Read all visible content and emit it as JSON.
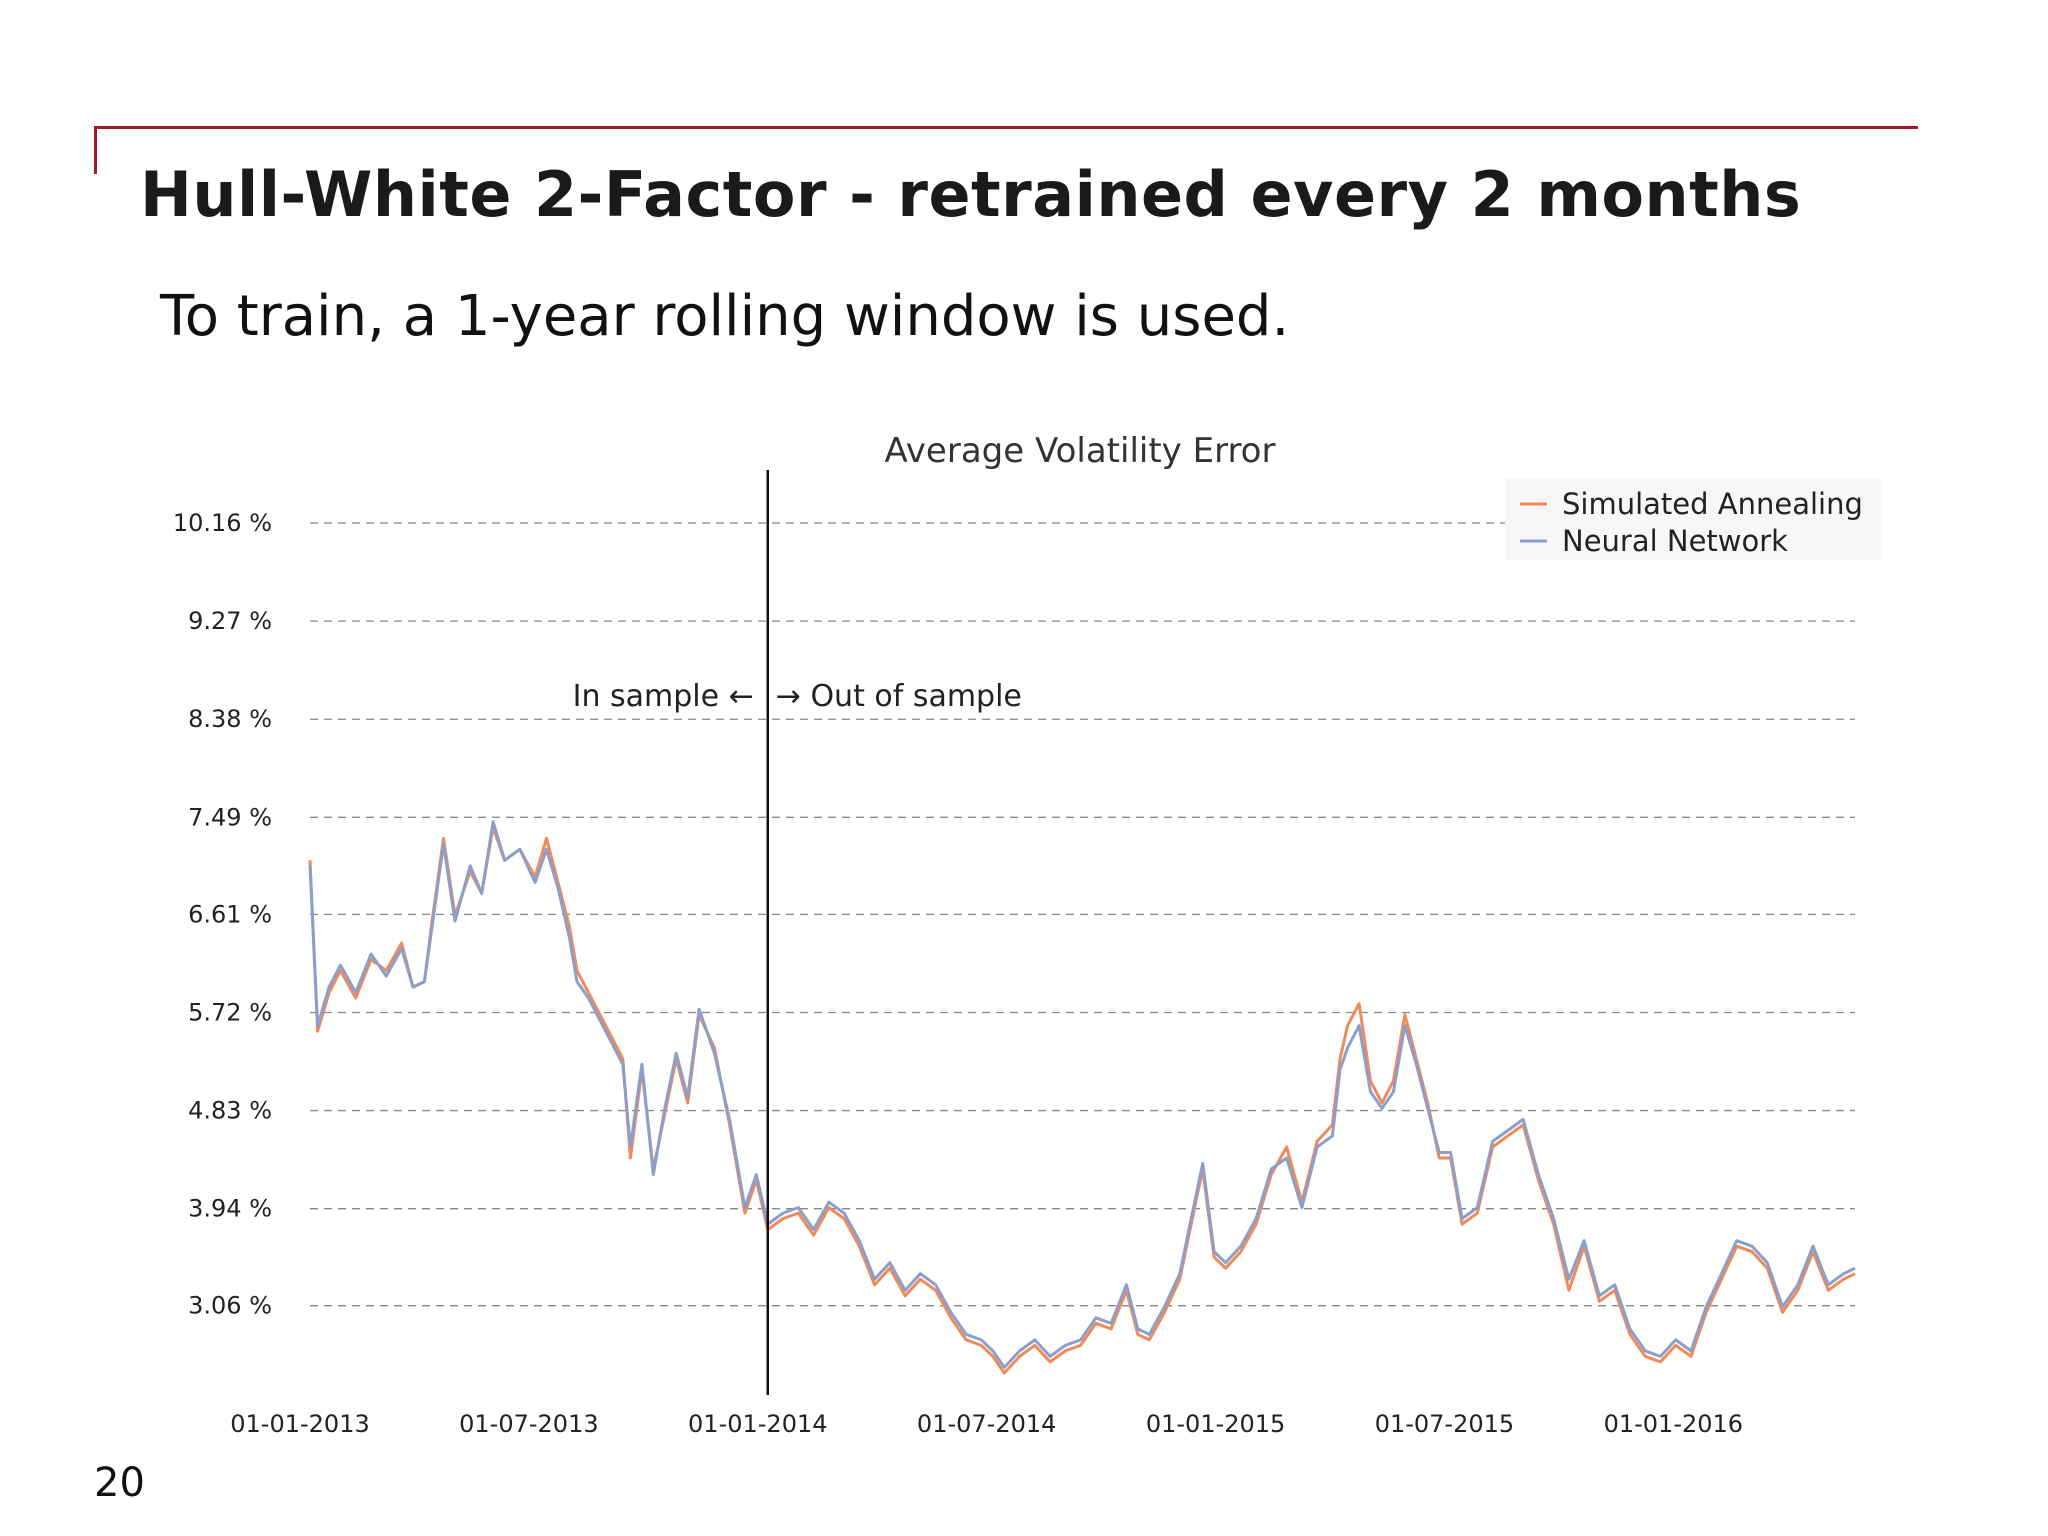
{
  "slide": {
    "title": "Hull-White 2-Factor - retrained every 2 months",
    "subtitle": "To train, a 1-year rolling window is used.",
    "page_number": "20",
    "accent_color": "#a0182a"
  },
  "chart_data": {
    "type": "line",
    "title": "Average Volatility Error",
    "xlabel": "",
    "ylabel": "",
    "x_tick_labels": [
      "01-01-2013",
      "01-07-2013",
      "01-01-2014",
      "01-07-2014",
      "01-01-2015",
      "01-07-2015",
      "01-01-2016"
    ],
    "y_tick_labels": [
      "10.16 %",
      "9.27 %",
      "8.38 %",
      "7.49 %",
      "6.61 %",
      "5.72 %",
      "4.83 %",
      "3.94 %",
      "3.06 %"
    ],
    "y_ticks": [
      10.16,
      9.27,
      8.38,
      7.49,
      6.61,
      5.72,
      4.83,
      3.94,
      3.06
    ],
    "ylim": [
      2.25,
      10.55
    ],
    "x_range_months": [
      0,
      40.5
    ],
    "grid": "horizontal dashed",
    "legend_position": "top-right",
    "split": {
      "x_month": 12,
      "label_left": "In sample ←",
      "label_right": "→ Out of sample"
    },
    "x_unit": "months since 01-01-2013",
    "series": [
      {
        "name": "Simulated Annealing",
        "color": "#ef8a5b",
        "points": [
          [
            0,
            7.1
          ],
          [
            0.2,
            5.55
          ],
          [
            0.5,
            5.9
          ],
          [
            0.8,
            6.1
          ],
          [
            1.2,
            5.85
          ],
          [
            1.6,
            6.2
          ],
          [
            2,
            6.1
          ],
          [
            2.4,
            6.35
          ],
          [
            2.7,
            5.95
          ],
          [
            3,
            6.0
          ],
          [
            3.2,
            6.55
          ],
          [
            3.5,
            7.3
          ],
          [
            3.8,
            6.6
          ],
          [
            4.2,
            7.0
          ],
          [
            4.5,
            6.8
          ],
          [
            4.8,
            7.4
          ],
          [
            5.1,
            7.1
          ],
          [
            5.5,
            7.2
          ],
          [
            5.9,
            6.95
          ],
          [
            6.2,
            7.3
          ],
          [
            6.5,
            6.9
          ],
          [
            6.8,
            6.5
          ],
          [
            7.0,
            6.1
          ],
          [
            7.3,
            5.9
          ],
          [
            7.6,
            5.7
          ],
          [
            7.9,
            5.5
          ],
          [
            8.2,
            5.3
          ],
          [
            8.4,
            4.4
          ],
          [
            8.7,
            5.2
          ],
          [
            9.0,
            4.3
          ],
          [
            9.3,
            4.8
          ],
          [
            9.6,
            5.3
          ],
          [
            9.9,
            4.9
          ],
          [
            10.2,
            5.7
          ],
          [
            10.6,
            5.4
          ],
          [
            11.0,
            4.7
          ],
          [
            11.4,
            3.9
          ],
          [
            11.7,
            4.2
          ],
          [
            12.0,
            3.75
          ],
          [
            12.4,
            3.85
          ],
          [
            12.8,
            3.9
          ],
          [
            13.2,
            3.7
          ],
          [
            13.6,
            3.95
          ],
          [
            14.0,
            3.85
          ],
          [
            14.4,
            3.6
          ],
          [
            14.8,
            3.25
          ],
          [
            15.2,
            3.4
          ],
          [
            15.6,
            3.15
          ],
          [
            16.0,
            3.3
          ],
          [
            16.4,
            3.2
          ],
          [
            16.8,
            2.95
          ],
          [
            17.2,
            2.75
          ],
          [
            17.6,
            2.7
          ],
          [
            17.9,
            2.6
          ],
          [
            18.2,
            2.45
          ],
          [
            18.6,
            2.6
          ],
          [
            19.0,
            2.7
          ],
          [
            19.4,
            2.55
          ],
          [
            19.8,
            2.65
          ],
          [
            20.2,
            2.7
          ],
          [
            20.6,
            2.9
          ],
          [
            21.0,
            2.85
          ],
          [
            21.4,
            3.2
          ],
          [
            21.7,
            2.8
          ],
          [
            22.0,
            2.75
          ],
          [
            22.4,
            3.0
          ],
          [
            22.8,
            3.3
          ],
          [
            23.1,
            3.8
          ],
          [
            23.4,
            4.3
          ],
          [
            23.7,
            3.5
          ],
          [
            24.0,
            3.4
          ],
          [
            24.4,
            3.55
          ],
          [
            24.8,
            3.8
          ],
          [
            25.2,
            4.25
          ],
          [
            25.6,
            4.5
          ],
          [
            26.0,
            4.0
          ],
          [
            26.4,
            4.55
          ],
          [
            26.8,
            4.7
          ],
          [
            27.0,
            5.3
          ],
          [
            27.2,
            5.6
          ],
          [
            27.5,
            5.8
          ],
          [
            27.8,
            5.1
          ],
          [
            28.1,
            4.9
          ],
          [
            28.4,
            5.1
          ],
          [
            28.7,
            5.7
          ],
          [
            29.0,
            5.3
          ],
          [
            29.3,
            4.9
          ],
          [
            29.6,
            4.4
          ],
          [
            29.9,
            4.4
          ],
          [
            30.2,
            3.8
          ],
          [
            30.6,
            3.9
          ],
          [
            31.0,
            4.5
          ],
          [
            31.4,
            4.6
          ],
          [
            31.8,
            4.7
          ],
          [
            32.2,
            4.2
          ],
          [
            32.6,
            3.8
          ],
          [
            33.0,
            3.2
          ],
          [
            33.4,
            3.6
          ],
          [
            33.8,
            3.1
          ],
          [
            34.2,
            3.2
          ],
          [
            34.6,
            2.8
          ],
          [
            35.0,
            2.6
          ],
          [
            35.4,
            2.55
          ],
          [
            35.8,
            2.7
          ],
          [
            36.2,
            2.6
          ],
          [
            36.6,
            3.0
          ],
          [
            37.0,
            3.3
          ],
          [
            37.4,
            3.6
          ],
          [
            37.8,
            3.55
          ],
          [
            38.2,
            3.4
          ],
          [
            38.6,
            3.0
          ],
          [
            39.0,
            3.2
          ],
          [
            39.4,
            3.55
          ],
          [
            39.8,
            3.2
          ],
          [
            40.2,
            3.3
          ],
          [
            40.5,
            3.35
          ]
        ]
      },
      {
        "name": "Neural Network",
        "color": "#8c9fcb",
        "points": [
          [
            0,
            7.05
          ],
          [
            0.2,
            5.6
          ],
          [
            0.5,
            5.95
          ],
          [
            0.8,
            6.15
          ],
          [
            1.2,
            5.9
          ],
          [
            1.6,
            6.25
          ],
          [
            2,
            6.05
          ],
          [
            2.4,
            6.3
          ],
          [
            2.7,
            5.95
          ],
          [
            3,
            6.0
          ],
          [
            3.2,
            6.5
          ],
          [
            3.5,
            7.25
          ],
          [
            3.8,
            6.55
          ],
          [
            4.2,
            7.05
          ],
          [
            4.5,
            6.8
          ],
          [
            4.8,
            7.45
          ],
          [
            5.1,
            7.1
          ],
          [
            5.5,
            7.2
          ],
          [
            5.9,
            6.9
          ],
          [
            6.2,
            7.2
          ],
          [
            6.5,
            6.85
          ],
          [
            6.8,
            6.4
          ],
          [
            7.0,
            6.0
          ],
          [
            7.3,
            5.85
          ],
          [
            7.6,
            5.65
          ],
          [
            7.9,
            5.45
          ],
          [
            8.2,
            5.25
          ],
          [
            8.4,
            4.5
          ],
          [
            8.7,
            5.25
          ],
          [
            9.0,
            4.25
          ],
          [
            9.3,
            4.85
          ],
          [
            9.6,
            5.35
          ],
          [
            9.9,
            4.95
          ],
          [
            10.2,
            5.75
          ],
          [
            10.6,
            5.35
          ],
          [
            11.0,
            4.75
          ],
          [
            11.4,
            3.95
          ],
          [
            11.7,
            4.25
          ],
          [
            12.0,
            3.8
          ],
          [
            12.4,
            3.9
          ],
          [
            12.8,
            3.95
          ],
          [
            13.2,
            3.75
          ],
          [
            13.6,
            4.0
          ],
          [
            14.0,
            3.9
          ],
          [
            14.4,
            3.65
          ],
          [
            14.8,
            3.3
          ],
          [
            15.2,
            3.45
          ],
          [
            15.6,
            3.2
          ],
          [
            16.0,
            3.35
          ],
          [
            16.4,
            3.25
          ],
          [
            16.8,
            3.0
          ],
          [
            17.2,
            2.8
          ],
          [
            17.6,
            2.75
          ],
          [
            17.9,
            2.65
          ],
          [
            18.2,
            2.5
          ],
          [
            18.6,
            2.65
          ],
          [
            19.0,
            2.75
          ],
          [
            19.4,
            2.6
          ],
          [
            19.8,
            2.7
          ],
          [
            20.2,
            2.75
          ],
          [
            20.6,
            2.95
          ],
          [
            21.0,
            2.9
          ],
          [
            21.4,
            3.25
          ],
          [
            21.7,
            2.85
          ],
          [
            22.0,
            2.8
          ],
          [
            22.4,
            3.05
          ],
          [
            22.8,
            3.35
          ],
          [
            23.1,
            3.85
          ],
          [
            23.4,
            4.35
          ],
          [
            23.7,
            3.55
          ],
          [
            24.0,
            3.45
          ],
          [
            24.4,
            3.6
          ],
          [
            24.8,
            3.85
          ],
          [
            25.2,
            4.3
          ],
          [
            25.6,
            4.4
          ],
          [
            26.0,
            3.95
          ],
          [
            26.4,
            4.5
          ],
          [
            26.8,
            4.6
          ],
          [
            27.0,
            5.2
          ],
          [
            27.2,
            5.4
          ],
          [
            27.5,
            5.6
          ],
          [
            27.8,
            5.0
          ],
          [
            28.1,
            4.85
          ],
          [
            28.4,
            5.0
          ],
          [
            28.7,
            5.6
          ],
          [
            29.0,
            5.25
          ],
          [
            29.3,
            4.85
          ],
          [
            29.6,
            4.45
          ],
          [
            29.9,
            4.45
          ],
          [
            30.2,
            3.85
          ],
          [
            30.6,
            3.95
          ],
          [
            31.0,
            4.55
          ],
          [
            31.4,
            4.65
          ],
          [
            31.8,
            4.75
          ],
          [
            32.2,
            4.25
          ],
          [
            32.6,
            3.85
          ],
          [
            33.0,
            3.3
          ],
          [
            33.4,
            3.65
          ],
          [
            33.8,
            3.15
          ],
          [
            34.2,
            3.25
          ],
          [
            34.6,
            2.85
          ],
          [
            35.0,
            2.65
          ],
          [
            35.4,
            2.6
          ],
          [
            35.8,
            2.75
          ],
          [
            36.2,
            2.65
          ],
          [
            36.6,
            3.05
          ],
          [
            37.0,
            3.35
          ],
          [
            37.4,
            3.65
          ],
          [
            37.8,
            3.6
          ],
          [
            38.2,
            3.45
          ],
          [
            38.6,
            3.05
          ],
          [
            39.0,
            3.25
          ],
          [
            39.4,
            3.6
          ],
          [
            39.8,
            3.25
          ],
          [
            40.2,
            3.35
          ],
          [
            40.5,
            3.4
          ]
        ]
      }
    ]
  }
}
